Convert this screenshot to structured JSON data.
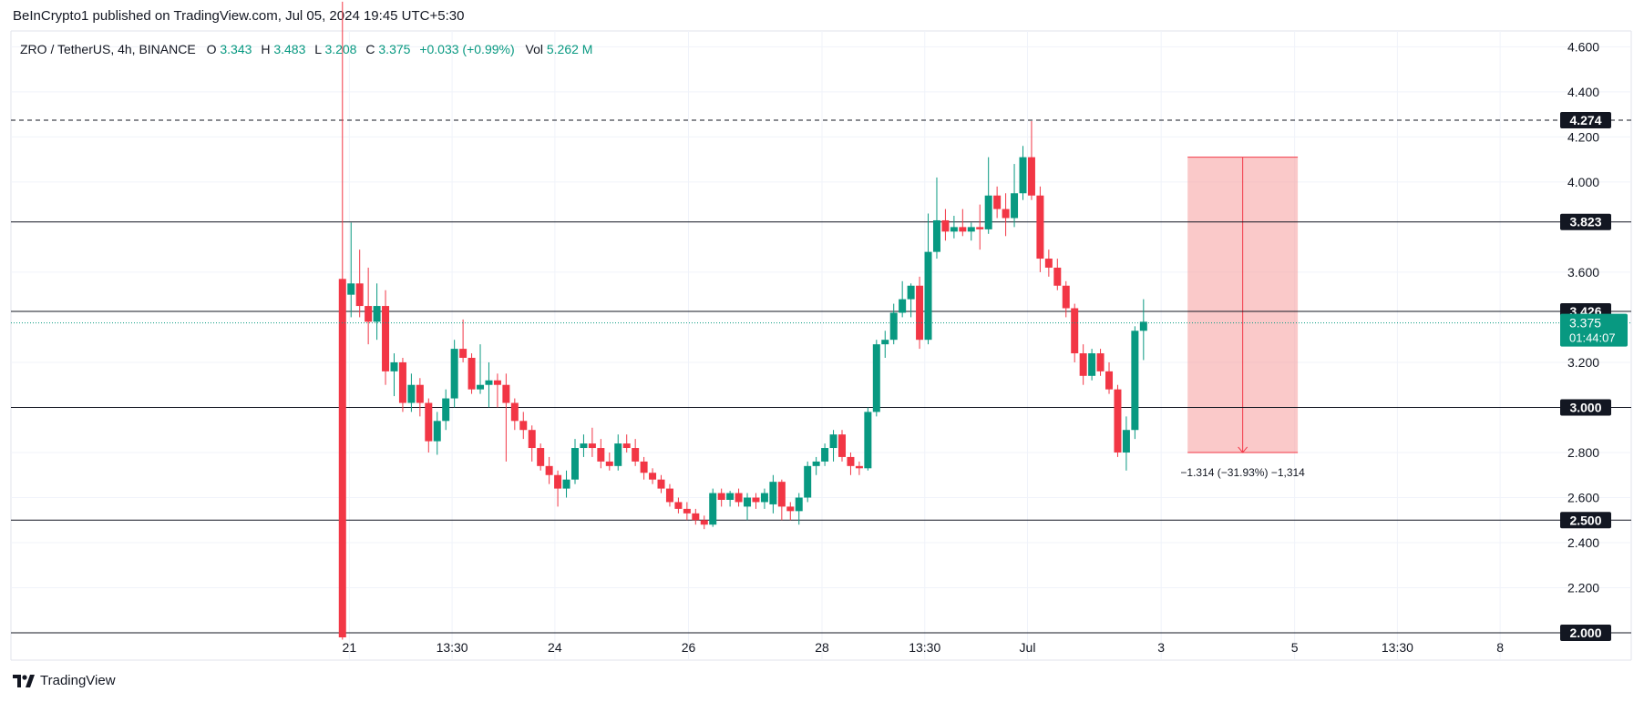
{
  "publisher_line": "BeInCrypto1 published on TradingView.com, Jul 05, 2024 19:45 UTC+5:30",
  "footer": {
    "brand": "TradingView"
  },
  "legend": {
    "symbol": "ZRO / TetherUS, 4h, BINANCE",
    "o_label": "O",
    "o_value": "3.343",
    "h_label": "H",
    "h_value": "3.483",
    "l_label": "L",
    "l_value": "3.208",
    "c_label": "C",
    "c_value": "3.375",
    "change": "+0.033 (+0.99%)",
    "vol_label": "Vol",
    "vol_value": "5.262 M"
  },
  "colors": {
    "up": "#089981",
    "down": "#f23645",
    "grid": "#f0f3fa",
    "level": "#131722",
    "measure_fill": "#f7a5a5",
    "measure_line": "#f23645",
    "price_tag": "#089981"
  },
  "chart_data": {
    "type": "candlestick",
    "title": "ZRO / TetherUS, 4h, BINANCE",
    "y_axis": {
      "range": [
        1.98,
        4.67
      ],
      "ticks": [
        "4.600",
        "4.400",
        "4.200",
        "4.000",
        "3.600",
        "3.200",
        "2.800",
        "2.600",
        "2.400",
        "2.200"
      ]
    },
    "x_axis": {
      "ticks": [
        {
          "label": "21",
          "pos": 0.2125
        },
        {
          "label": "13:30",
          "pos": 0.275
        },
        {
          "label": "24",
          "pos": 0.3375
        },
        {
          "label": "26",
          "pos": 0.4188
        },
        {
          "label": "28",
          "pos": 0.5
        },
        {
          "label": "13:30",
          "pos": 0.5625
        },
        {
          "label": "Jul",
          "pos": 0.625
        },
        {
          "label": "3",
          "pos": 0.7063
        },
        {
          "label": "5",
          "pos": 0.7875
        },
        {
          "label": "13:30",
          "pos": 0.85
        },
        {
          "label": "8",
          "pos": 0.9125
        }
      ]
    },
    "horizontal_levels": [
      {
        "value": 4.274,
        "label": "4.274",
        "style": "dashed"
      },
      {
        "value": 3.823,
        "label": "3.823",
        "style": "solid"
      },
      {
        "value": 3.426,
        "label": "3.426",
        "style": "solid"
      },
      {
        "value": 3.0,
        "label": "3.000",
        "style": "solid"
      },
      {
        "value": 2.5,
        "label": "2.500",
        "style": "solid"
      },
      {
        "value": 2.0,
        "label": "2.000",
        "style": "solid"
      }
    ],
    "last_price": {
      "value": 3.375,
      "label": "3.375",
      "countdown": "01:44:07"
    },
    "measurement": {
      "from_value": 4.11,
      "to_value": 2.8,
      "x_start": 0.7224,
      "x_end": 0.7894,
      "text": "−1.314 (−31.93%) −1,314"
    },
    "x_range": [
      0.205,
      0.95
    ],
    "candles": [
      {
        "t": 0.2037,
        "o": 3.57,
        "h": 4.8,
        "l": 1.97,
        "c": 1.98
      },
      {
        "t": 0.209,
        "o": 3.5,
        "h": 3.82,
        "l": 3.4,
        "c": 3.55
      },
      {
        "t": 0.2143,
        "o": 3.55,
        "h": 3.7,
        "l": 3.4,
        "c": 3.45
      },
      {
        "t": 0.2196,
        "o": 3.45,
        "h": 3.62,
        "l": 3.28,
        "c": 3.38
      },
      {
        "t": 0.2249,
        "o": 3.38,
        "h": 3.55,
        "l": 3.3,
        "c": 3.45
      },
      {
        "t": 0.2302,
        "o": 3.45,
        "h": 3.52,
        "l": 3.1,
        "c": 3.16
      },
      {
        "t": 0.2355,
        "o": 3.16,
        "h": 3.24,
        "l": 3.05,
        "c": 3.2
      },
      {
        "t": 0.2408,
        "o": 3.2,
        "h": 3.22,
        "l": 2.98,
        "c": 3.02
      },
      {
        "t": 0.2461,
        "o": 3.02,
        "h": 3.15,
        "l": 2.98,
        "c": 3.1
      },
      {
        "t": 0.2514,
        "o": 3.1,
        "h": 3.13,
        "l": 2.96,
        "c": 3.02
      },
      {
        "t": 0.2567,
        "o": 3.02,
        "h": 3.04,
        "l": 2.8,
        "c": 2.85
      },
      {
        "t": 0.262,
        "o": 2.85,
        "h": 2.98,
        "l": 2.79,
        "c": 2.94
      },
      {
        "t": 0.2673,
        "o": 2.94,
        "h": 3.08,
        "l": 2.9,
        "c": 3.04
      },
      {
        "t": 0.2726,
        "o": 3.04,
        "h": 3.3,
        "l": 3.0,
        "c": 3.26
      },
      {
        "t": 0.2779,
        "o": 3.26,
        "h": 3.39,
        "l": 3.2,
        "c": 3.22
      },
      {
        "t": 0.2832,
        "o": 3.22,
        "h": 3.24,
        "l": 3.06,
        "c": 3.08
      },
      {
        "t": 0.2885,
        "o": 3.08,
        "h": 3.28,
        "l": 3.06,
        "c": 3.1
      },
      {
        "t": 0.2938,
        "o": 3.1,
        "h": 3.2,
        "l": 3.0,
        "c": 3.12
      },
      {
        "t": 0.2991,
        "o": 3.12,
        "h": 3.15,
        "l": 3.0,
        "c": 3.1
      },
      {
        "t": 0.3044,
        "o": 3.1,
        "h": 3.15,
        "l": 2.76,
        "c": 3.02
      },
      {
        "t": 0.3097,
        "o": 3.02,
        "h": 3.04,
        "l": 2.9,
        "c": 2.94
      },
      {
        "t": 0.315,
        "o": 2.94,
        "h": 2.98,
        "l": 2.86,
        "c": 2.9
      },
      {
        "t": 0.3203,
        "o": 2.9,
        "h": 2.92,
        "l": 2.76,
        "c": 2.82
      },
      {
        "t": 0.3256,
        "o": 2.82,
        "h": 2.84,
        "l": 2.72,
        "c": 2.74
      },
      {
        "t": 0.3309,
        "o": 2.74,
        "h": 2.78,
        "l": 2.66,
        "c": 2.7
      },
      {
        "t": 0.3362,
        "o": 2.7,
        "h": 2.72,
        "l": 2.56,
        "c": 2.64
      },
      {
        "t": 0.3415,
        "o": 2.64,
        "h": 2.72,
        "l": 2.6,
        "c": 2.68
      },
      {
        "t": 0.3468,
        "o": 2.68,
        "h": 2.86,
        "l": 2.66,
        "c": 2.82
      },
      {
        "t": 0.3521,
        "o": 2.82,
        "h": 2.88,
        "l": 2.78,
        "c": 2.84
      },
      {
        "t": 0.3574,
        "o": 2.84,
        "h": 2.91,
        "l": 2.78,
        "c": 2.82
      },
      {
        "t": 0.3627,
        "o": 2.82,
        "h": 2.86,
        "l": 2.73,
        "c": 2.76
      },
      {
        "t": 0.368,
        "o": 2.76,
        "h": 2.8,
        "l": 2.72,
        "c": 2.74
      },
      {
        "t": 0.3733,
        "o": 2.74,
        "h": 2.88,
        "l": 2.72,
        "c": 2.84
      },
      {
        "t": 0.3786,
        "o": 2.84,
        "h": 2.88,
        "l": 2.8,
        "c": 2.82
      },
      {
        "t": 0.3839,
        "o": 2.82,
        "h": 2.86,
        "l": 2.74,
        "c": 2.76
      },
      {
        "t": 0.3892,
        "o": 2.76,
        "h": 2.78,
        "l": 2.68,
        "c": 2.71
      },
      {
        "t": 0.3945,
        "o": 2.71,
        "h": 2.73,
        "l": 2.66,
        "c": 2.68
      },
      {
        "t": 0.3998,
        "o": 2.68,
        "h": 2.7,
        "l": 2.62,
        "c": 2.64
      },
      {
        "t": 0.4051,
        "o": 2.64,
        "h": 2.66,
        "l": 2.56,
        "c": 2.58
      },
      {
        "t": 0.4104,
        "o": 2.58,
        "h": 2.6,
        "l": 2.53,
        "c": 2.55
      },
      {
        "t": 0.4157,
        "o": 2.55,
        "h": 2.58,
        "l": 2.5,
        "c": 2.53
      },
      {
        "t": 0.421,
        "o": 2.53,
        "h": 2.55,
        "l": 2.48,
        "c": 2.5
      },
      {
        "t": 0.4263,
        "o": 2.5,
        "h": 2.52,
        "l": 2.46,
        "c": 2.48
      },
      {
        "t": 0.4316,
        "o": 2.48,
        "h": 2.64,
        "l": 2.47,
        "c": 2.62
      },
      {
        "t": 0.4369,
        "o": 2.62,
        "h": 2.64,
        "l": 2.56,
        "c": 2.59
      },
      {
        "t": 0.4422,
        "o": 2.59,
        "h": 2.63,
        "l": 2.56,
        "c": 2.62
      },
      {
        "t": 0.4475,
        "o": 2.62,
        "h": 2.64,
        "l": 2.56,
        "c": 2.58
      },
      {
        "t": 0.4528,
        "o": 2.56,
        "h": 2.62,
        "l": 2.5,
        "c": 2.6
      },
      {
        "t": 0.4581,
        "o": 2.6,
        "h": 2.62,
        "l": 2.55,
        "c": 2.58
      },
      {
        "t": 0.4634,
        "o": 2.58,
        "h": 2.64,
        "l": 2.55,
        "c": 2.62
      },
      {
        "t": 0.4687,
        "o": 2.57,
        "h": 2.7,
        "l": 2.53,
        "c": 2.67
      },
      {
        "t": 0.474,
        "o": 2.67,
        "h": 2.68,
        "l": 2.5,
        "c": 2.56
      },
      {
        "t": 0.4793,
        "o": 2.56,
        "h": 2.58,
        "l": 2.5,
        "c": 2.54
      },
      {
        "t": 0.4846,
        "o": 2.54,
        "h": 2.62,
        "l": 2.48,
        "c": 2.6
      },
      {
        "t": 0.4899,
        "o": 2.6,
        "h": 2.76,
        "l": 2.58,
        "c": 2.74
      },
      {
        "t": 0.4952,
        "o": 2.74,
        "h": 2.78,
        "l": 2.7,
        "c": 2.76
      },
      {
        "t": 0.5005,
        "o": 2.76,
        "h": 2.84,
        "l": 2.74,
        "c": 2.82
      },
      {
        "t": 0.5058,
        "o": 2.82,
        "h": 2.9,
        "l": 2.76,
        "c": 2.88
      },
      {
        "t": 0.5111,
        "o": 2.88,
        "h": 2.9,
        "l": 2.76,
        "c": 2.78
      },
      {
        "t": 0.5164,
        "o": 2.78,
        "h": 2.8,
        "l": 2.7,
        "c": 2.74
      },
      {
        "t": 0.5217,
        "o": 2.74,
        "h": 2.76,
        "l": 2.7,
        "c": 2.73
      },
      {
        "t": 0.527,
        "o": 2.73,
        "h": 3.0,
        "l": 2.72,
        "c": 2.98
      },
      {
        "t": 0.5323,
        "o": 2.98,
        "h": 3.3,
        "l": 2.96,
        "c": 3.28
      },
      {
        "t": 0.5376,
        "o": 3.28,
        "h": 3.34,
        "l": 3.22,
        "c": 3.3
      },
      {
        "t": 0.5429,
        "o": 3.3,
        "h": 3.46,
        "l": 3.28,
        "c": 3.42
      },
      {
        "t": 0.5482,
        "o": 3.42,
        "h": 3.56,
        "l": 3.4,
        "c": 3.48
      },
      {
        "t": 0.5535,
        "o": 3.48,
        "h": 3.55,
        "l": 3.4,
        "c": 3.54
      },
      {
        "t": 0.5588,
        "o": 3.54,
        "h": 3.58,
        "l": 3.26,
        "c": 3.3
      },
      {
        "t": 0.5641,
        "o": 3.3,
        "h": 3.86,
        "l": 3.28,
        "c": 3.69
      },
      {
        "t": 0.5694,
        "o": 3.69,
        "h": 4.02,
        "l": 3.66,
        "c": 3.83
      },
      {
        "t": 0.5747,
        "o": 3.83,
        "h": 3.88,
        "l": 3.74,
        "c": 3.78
      },
      {
        "t": 0.58,
        "o": 3.78,
        "h": 3.85,
        "l": 3.75,
        "c": 3.8
      },
      {
        "t": 0.5853,
        "o": 3.8,
        "h": 3.88,
        "l": 3.76,
        "c": 3.78
      },
      {
        "t": 0.5906,
        "o": 3.78,
        "h": 3.82,
        "l": 3.74,
        "c": 3.8
      },
      {
        "t": 0.5959,
        "o": 3.8,
        "h": 3.9,
        "l": 3.7,
        "c": 3.79
      },
      {
        "t": 0.6012,
        "o": 3.79,
        "h": 4.11,
        "l": 3.77,
        "c": 3.94
      },
      {
        "t": 0.6065,
        "o": 3.94,
        "h": 3.98,
        "l": 3.84,
        "c": 3.88
      },
      {
        "t": 0.6118,
        "o": 3.88,
        "h": 3.95,
        "l": 3.76,
        "c": 3.84
      },
      {
        "t": 0.6171,
        "o": 3.84,
        "h": 4.08,
        "l": 3.8,
        "c": 3.95
      },
      {
        "t": 0.6224,
        "o": 3.95,
        "h": 4.16,
        "l": 3.92,
        "c": 4.11
      },
      {
        "t": 0.6277,
        "o": 4.11,
        "h": 4.27,
        "l": 3.92,
        "c": 3.94
      },
      {
        "t": 0.633,
        "o": 3.94,
        "h": 3.98,
        "l": 3.6,
        "c": 3.66
      },
      {
        "t": 0.6383,
        "o": 3.66,
        "h": 3.7,
        "l": 3.58,
        "c": 3.62
      },
      {
        "t": 0.6436,
        "o": 3.62,
        "h": 3.66,
        "l": 3.52,
        "c": 3.54
      },
      {
        "t": 0.6489,
        "o": 3.54,
        "h": 3.56,
        "l": 3.4,
        "c": 3.44
      },
      {
        "t": 0.6542,
        "o": 3.44,
        "h": 3.46,
        "l": 3.2,
        "c": 3.24
      },
      {
        "t": 0.6595,
        "o": 3.24,
        "h": 3.28,
        "l": 3.1,
        "c": 3.14
      },
      {
        "t": 0.6648,
        "o": 3.14,
        "h": 3.26,
        "l": 3.12,
        "c": 3.24
      },
      {
        "t": 0.6701,
        "o": 3.24,
        "h": 3.26,
        "l": 3.14,
        "c": 3.16
      },
      {
        "t": 0.6754,
        "o": 3.16,
        "h": 3.2,
        "l": 3.06,
        "c": 3.08
      },
      {
        "t": 0.6807,
        "o": 3.08,
        "h": 3.1,
        "l": 2.78,
        "c": 2.8
      },
      {
        "t": 0.686,
        "o": 2.8,
        "h": 2.96,
        "l": 2.72,
        "c": 2.9
      },
      {
        "t": 0.6913,
        "o": 2.9,
        "h": 3.36,
        "l": 2.86,
        "c": 3.34
      },
      {
        "t": 0.6966,
        "o": 3.34,
        "h": 3.48,
        "l": 3.21,
        "c": 3.38
      }
    ]
  }
}
